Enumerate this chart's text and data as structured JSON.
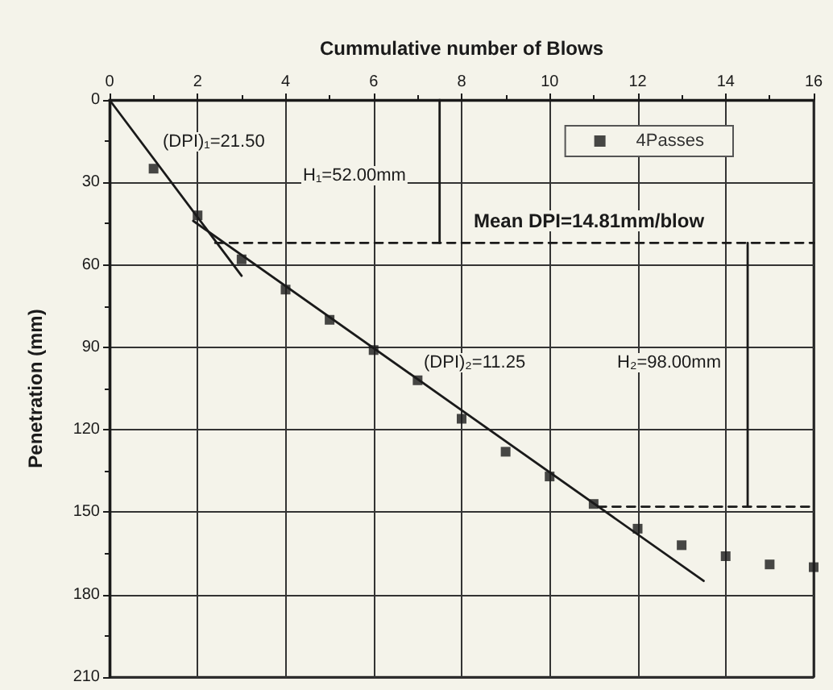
{
  "chart_data": {
    "type": "scatter",
    "xlabel": "Cummulative number of Blows",
    "ylabel": "Penetration (mm)",
    "xlim": [
      0,
      16
    ],
    "xticks": [
      0,
      2,
      4,
      6,
      8,
      10,
      12,
      14,
      16
    ],
    "ylim": [
      210,
      0
    ],
    "yticks": [
      0,
      30,
      60,
      90,
      120,
      150,
      180,
      210
    ],
    "grid": true,
    "legend": "top right",
    "series": [
      {
        "name": "4Passes",
        "marker": "square",
        "color": "#1a1a1a",
        "x": [
          1,
          2,
          3,
          4,
          5,
          6,
          7,
          8,
          9,
          10,
          11,
          12,
          13,
          14,
          15,
          16
        ],
        "values": [
          25,
          42,
          58,
          69,
          80,
          91,
          102,
          116,
          128,
          137,
          147,
          156,
          162,
          166,
          169,
          170
        ]
      },
      {
        "type": "line",
        "color": "#1a1a1a",
        "line_style": "solid",
        "x": [
          0,
          3
        ],
        "values": [
          0,
          64
        ]
      },
      {
        "type": "line",
        "color": "#1a1a1a",
        "line_style": "solid",
        "x": [
          1.9,
          13.5
        ],
        "values": [
          44,
          175
        ]
      },
      {
        "type": "line",
        "color": "#1a1a1a",
        "line_style": "dashed",
        "x": [
          2.4,
          16
        ],
        "values": [
          52,
          52
        ]
      },
      {
        "type": "line",
        "color": "#1a1a1a",
        "line_style": "dashed",
        "x": [
          11.1,
          16
        ],
        "values": [
          148,
          148
        ]
      },
      {
        "type": "line",
        "color": "#1a1a1a",
        "line_style": "solid",
        "x": [
          7.5,
          7.5
        ],
        "values": [
          0,
          52
        ]
      },
      {
        "type": "line",
        "color": "#1a1a1a",
        "line_style": "solid",
        "x": [
          14.5,
          14.5
        ],
        "values": [
          52,
          148
        ]
      }
    ],
    "annotations": [
      "(DPI)₁=21.50",
      "H₁=52.00mm",
      "Mean DPI=14.81mm/blow",
      "(DPI)₂=11.25",
      "H₂=98.00mm"
    ]
  }
}
